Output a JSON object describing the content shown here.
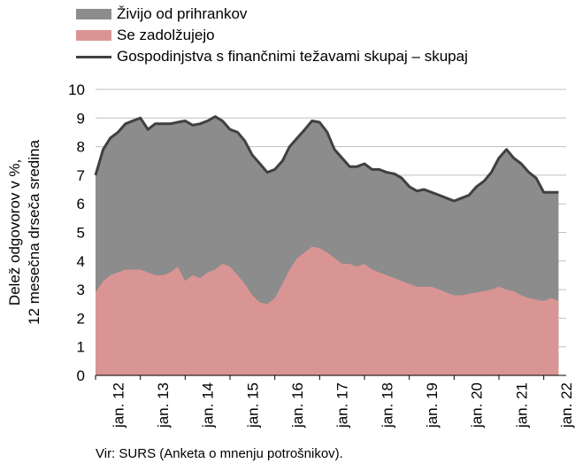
{
  "chart_data": {
    "type": "area",
    "legend": [
      {
        "key": "savings",
        "label": "Živijo od prihrankov",
        "color": "#8c8c8c",
        "kind": "area"
      },
      {
        "key": "debt",
        "label": "Se zadolžujejo",
        "color": "#d99594",
        "kind": "area"
      },
      {
        "key": "total",
        "label": "Gospodinjstva s finančnimi težavami skupaj – skupaj",
        "color": "#404040",
        "kind": "line"
      }
    ],
    "ylabel_line1": "Delež odgovorov v %,",
    "ylabel_line2": "12 mesečna drseča sredina",
    "ylim": [
      0,
      10
    ],
    "yticks": [
      "0",
      "1",
      "2",
      "3",
      "4",
      "5",
      "6",
      "7",
      "8",
      "9",
      "10"
    ],
    "xticks": [
      "jan. 12",
      "jan. 13",
      "jan. 14",
      "jan. 15",
      "jan. 16",
      "jan. 17",
      "jan. 18",
      "jan. 19",
      "jan. 20",
      "jan. 21",
      "jan. 22"
    ],
    "grid": true,
    "series": [
      {
        "name": "Gospodinjstva s finančnimi težavami skupaj – skupaj",
        "x": [
          2012.0,
          2012.17,
          2012.33,
          2012.5,
          2012.67,
          2012.83,
          2013.0,
          2013.17,
          2013.33,
          2013.5,
          2013.67,
          2013.83,
          2014.0,
          2014.17,
          2014.33,
          2014.5,
          2014.67,
          2014.83,
          2015.0,
          2015.17,
          2015.33,
          2015.5,
          2015.67,
          2015.83,
          2016.0,
          2016.17,
          2016.33,
          2016.5,
          2016.67,
          2016.83,
          2017.0,
          2017.17,
          2017.33,
          2017.5,
          2017.67,
          2017.83,
          2018.0,
          2018.17,
          2018.33,
          2018.5,
          2018.67,
          2018.83,
          2019.0,
          2019.17,
          2019.33,
          2019.5,
          2019.67,
          2019.83,
          2020.0,
          2020.17,
          2020.33,
          2020.5,
          2020.67,
          2020.83,
          2021.0,
          2021.17,
          2021.33,
          2021.5,
          2021.67,
          2021.83,
          2022.0,
          2022.17,
          2022.33
        ],
        "values": [
          7.0,
          7.9,
          8.3,
          8.5,
          8.8,
          8.9,
          9.0,
          8.6,
          8.8,
          8.8,
          8.8,
          8.85,
          8.9,
          8.75,
          8.8,
          8.9,
          9.05,
          8.9,
          8.6,
          8.5,
          8.2,
          7.7,
          7.4,
          7.1,
          7.2,
          7.5,
          8.0,
          8.3,
          8.6,
          8.9,
          8.85,
          8.5,
          7.9,
          7.6,
          7.3,
          7.3,
          7.4,
          7.2,
          7.2,
          7.1,
          7.05,
          6.9,
          6.6,
          6.45,
          6.5,
          6.4,
          6.3,
          6.2,
          6.1,
          6.2,
          6.3,
          6.6,
          6.8,
          7.1,
          7.6,
          7.9,
          7.6,
          7.4,
          7.1,
          6.9,
          6.4,
          6.4,
          6.4
        ]
      },
      {
        "name": "Se zadolžujejo",
        "x": [
          2012.0,
          2012.17,
          2012.33,
          2012.5,
          2012.67,
          2012.83,
          2013.0,
          2013.17,
          2013.33,
          2013.5,
          2013.67,
          2013.83,
          2014.0,
          2014.17,
          2014.33,
          2014.5,
          2014.67,
          2014.83,
          2015.0,
          2015.17,
          2015.33,
          2015.5,
          2015.67,
          2015.83,
          2016.0,
          2016.17,
          2016.33,
          2016.5,
          2016.67,
          2016.83,
          2017.0,
          2017.17,
          2017.33,
          2017.5,
          2017.67,
          2017.83,
          2018.0,
          2018.17,
          2018.33,
          2018.5,
          2018.67,
          2018.83,
          2019.0,
          2019.17,
          2019.33,
          2019.5,
          2019.67,
          2019.83,
          2020.0,
          2020.17,
          2020.33,
          2020.5,
          2020.67,
          2020.83,
          2021.0,
          2021.17,
          2021.33,
          2021.5,
          2021.67,
          2021.83,
          2022.0,
          2022.17,
          2022.33
        ],
        "values": [
          2.9,
          3.3,
          3.5,
          3.6,
          3.7,
          3.7,
          3.7,
          3.6,
          3.5,
          3.5,
          3.6,
          3.8,
          3.3,
          3.5,
          3.4,
          3.6,
          3.7,
          3.9,
          3.8,
          3.5,
          3.2,
          2.8,
          2.55,
          2.5,
          2.7,
          3.2,
          3.7,
          4.1,
          4.3,
          4.5,
          4.45,
          4.3,
          4.1,
          3.9,
          3.9,
          3.8,
          3.9,
          3.7,
          3.6,
          3.5,
          3.4,
          3.3,
          3.2,
          3.1,
          3.1,
          3.1,
          3.0,
          2.9,
          2.8,
          2.8,
          2.85,
          2.9,
          2.95,
          3.0,
          3.1,
          3.0,
          2.95,
          2.8,
          2.7,
          2.65,
          2.6,
          2.7,
          2.6
        ]
      }
    ]
  },
  "source": "Vir: SURS (Anketa o mnenju potrošnikov)."
}
